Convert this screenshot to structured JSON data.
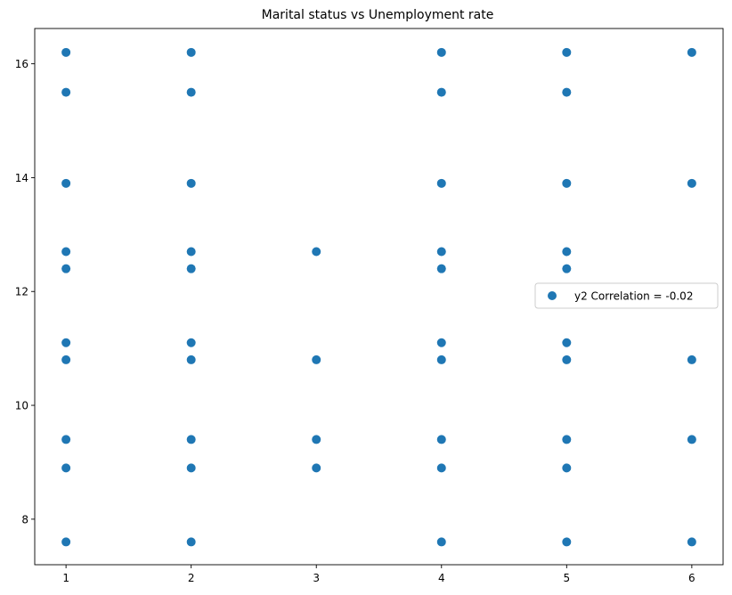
{
  "chart_data": {
    "type": "scatter",
    "title": "Marital status vs Unemployment rate",
    "xlabel": "",
    "ylabel": "",
    "xlim": [
      0.75,
      6.25
    ],
    "ylim": [
      7.2,
      16.62
    ],
    "xticks": [
      1,
      2,
      3,
      4,
      5,
      6
    ],
    "yticks": [
      8,
      10,
      12,
      14,
      16
    ],
    "grid": false,
    "legend_position": "center-right",
    "series": [
      {
        "name": "y2 Correlation = -0.02",
        "color": "#1f77b4",
        "points": [
          [
            1,
            7.6
          ],
          [
            1,
            8.9
          ],
          [
            1,
            9.4
          ],
          [
            1,
            10.8
          ],
          [
            1,
            11.1
          ],
          [
            1,
            12.4
          ],
          [
            1,
            12.7
          ],
          [
            1,
            13.9
          ],
          [
            1,
            15.5
          ],
          [
            1,
            16.2
          ],
          [
            2,
            7.6
          ],
          [
            2,
            8.9
          ],
          [
            2,
            9.4
          ],
          [
            2,
            10.8
          ],
          [
            2,
            11.1
          ],
          [
            2,
            12.4
          ],
          [
            2,
            12.7
          ],
          [
            2,
            13.9
          ],
          [
            2,
            15.5
          ],
          [
            2,
            16.2
          ],
          [
            3,
            8.9
          ],
          [
            3,
            9.4
          ],
          [
            3,
            10.8
          ],
          [
            3,
            12.7
          ],
          [
            4,
            7.6
          ],
          [
            4,
            8.9
          ],
          [
            4,
            9.4
          ],
          [
            4,
            10.8
          ],
          [
            4,
            11.1
          ],
          [
            4,
            12.4
          ],
          [
            4,
            12.7
          ],
          [
            4,
            13.9
          ],
          [
            4,
            15.5
          ],
          [
            4,
            16.2
          ],
          [
            5,
            7.6
          ],
          [
            5,
            8.9
          ],
          [
            5,
            9.4
          ],
          [
            5,
            10.8
          ],
          [
            5,
            11.1
          ],
          [
            5,
            12.4
          ],
          [
            5,
            12.7
          ],
          [
            5,
            13.9
          ],
          [
            5,
            15.5
          ],
          [
            5,
            16.2
          ],
          [
            6,
            7.6
          ],
          [
            6,
            9.4
          ],
          [
            6,
            10.8
          ],
          [
            6,
            13.9
          ],
          [
            6,
            16.2
          ]
        ]
      }
    ]
  }
}
